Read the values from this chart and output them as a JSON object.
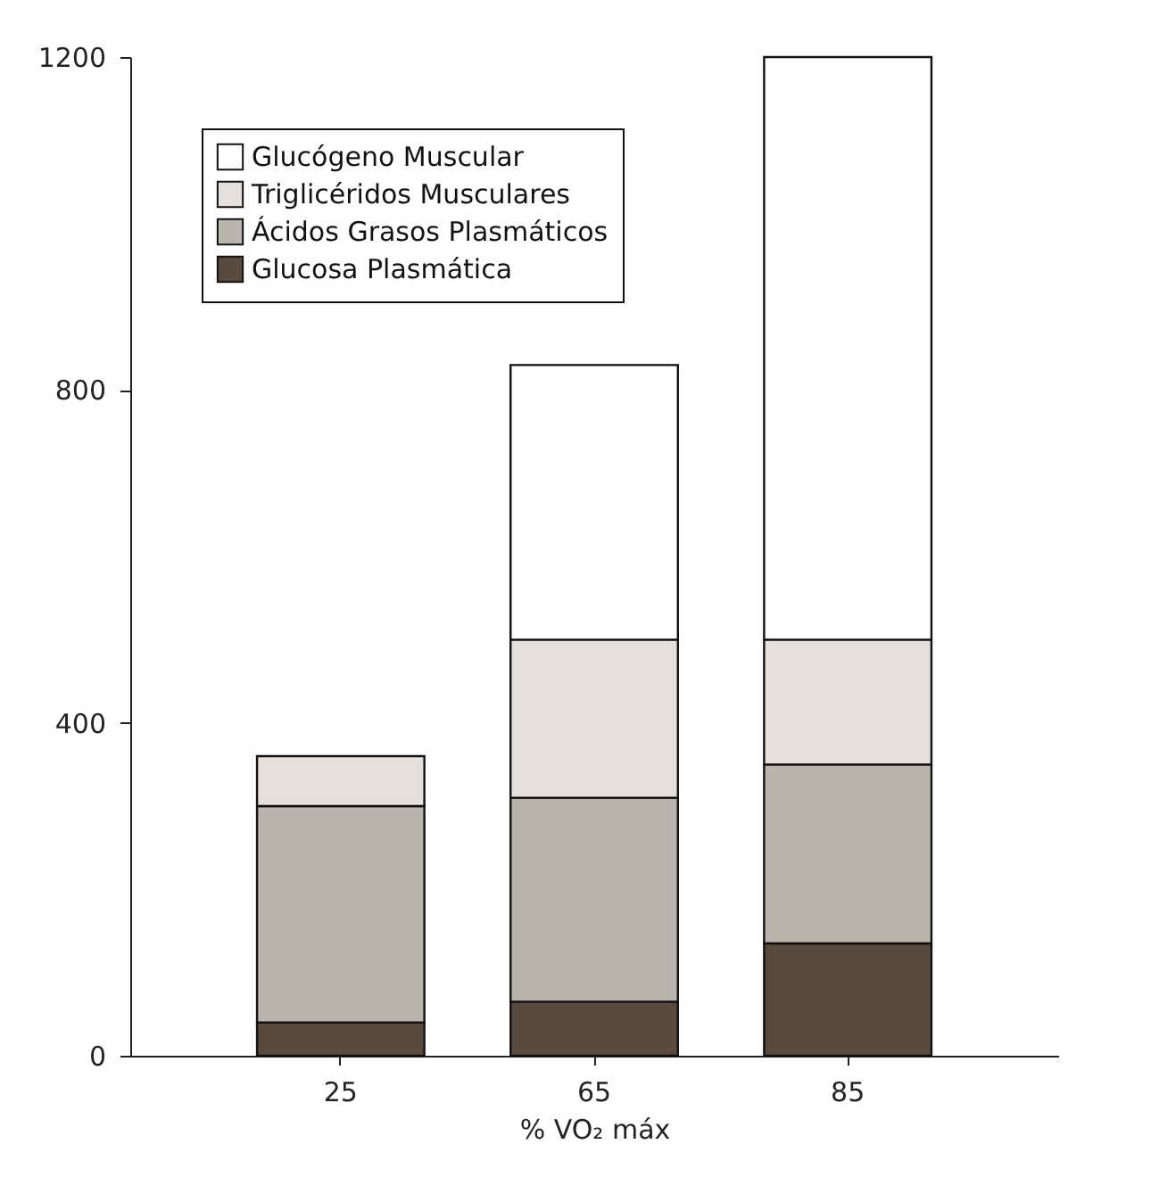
{
  "chart_data": {
    "type": "bar",
    "stacked": true,
    "xlabel": "% VO₂ máx",
    "categories": [
      "25",
      "65",
      "85"
    ],
    "series": [
      {
        "name": "Glucosa Plasmática",
        "color": "#5a4a3e",
        "values": [
          40,
          65,
          135
        ]
      },
      {
        "name": "Ácidos Grasos Plasmáticos",
        "color": "#b9b4ad",
        "values": [
          260,
          245,
          215
        ]
      },
      {
        "name": "Triglicéridos Musculares",
        "color": "#e4e1dc",
        "values": [
          60,
          190,
          150
        ]
      },
      {
        "name": "Glucógeno Muscular",
        "color": "#ffffff",
        "values": [
          null,
          330,
          700
        ]
      }
    ],
    "ylim": [
      0,
      1200
    ],
    "yticks": [
      0,
      400,
      800,
      1200
    ],
    "grid": false,
    "legend": "top left"
  }
}
